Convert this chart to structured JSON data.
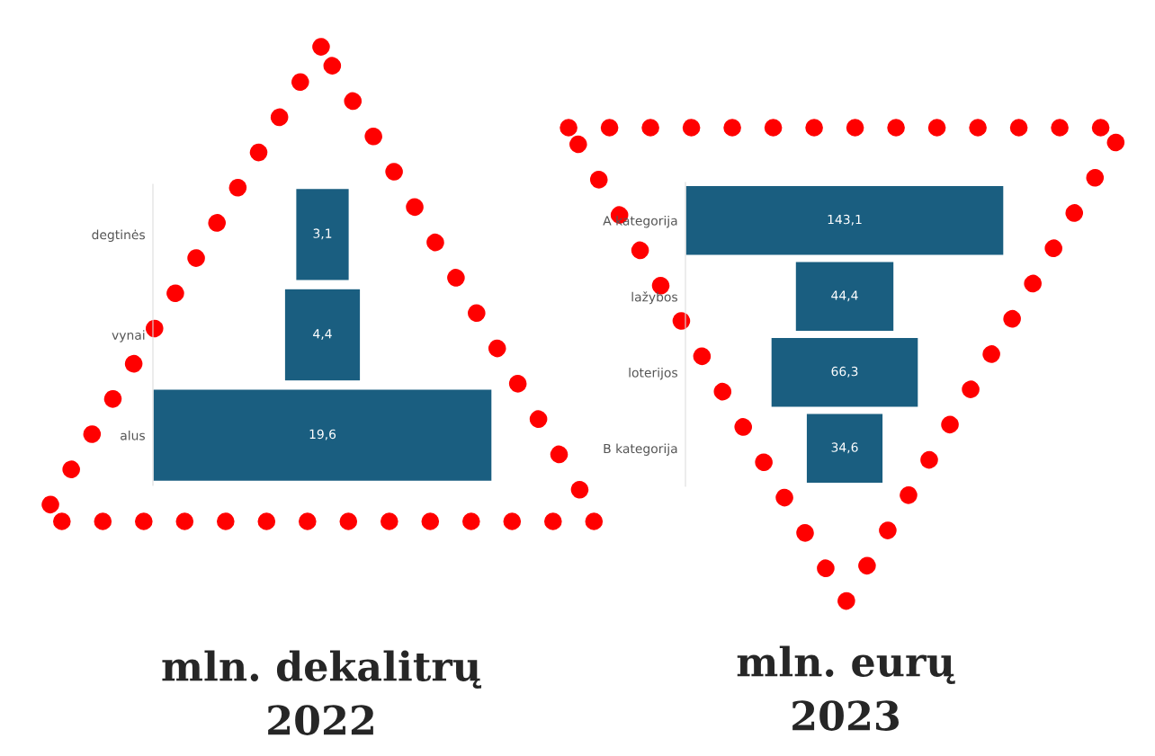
{
  "chart_data": [
    {
      "type": "other",
      "title": "mln. dekalitrų",
      "subtitle": "2022",
      "categories": [
        "degtinės",
        "vynai",
        "alus"
      ],
      "values": [
        3.1,
        4.4,
        19.6
      ],
      "value_labels": [
        "3,1",
        "4,4",
        "19,6"
      ],
      "color": "#1a5e80"
    },
    {
      "type": "other",
      "title": "mln. eurų",
      "subtitle": "2023",
      "categories": [
        "A kategorija",
        "lažybos",
        "loterijos",
        "B kategorija"
      ],
      "values": [
        143.1,
        44.4,
        66.3,
        34.6
      ],
      "value_labels": [
        "143,1",
        "44,4",
        "66,3",
        "34,6"
      ],
      "color": "#1a5e80"
    }
  ]
}
